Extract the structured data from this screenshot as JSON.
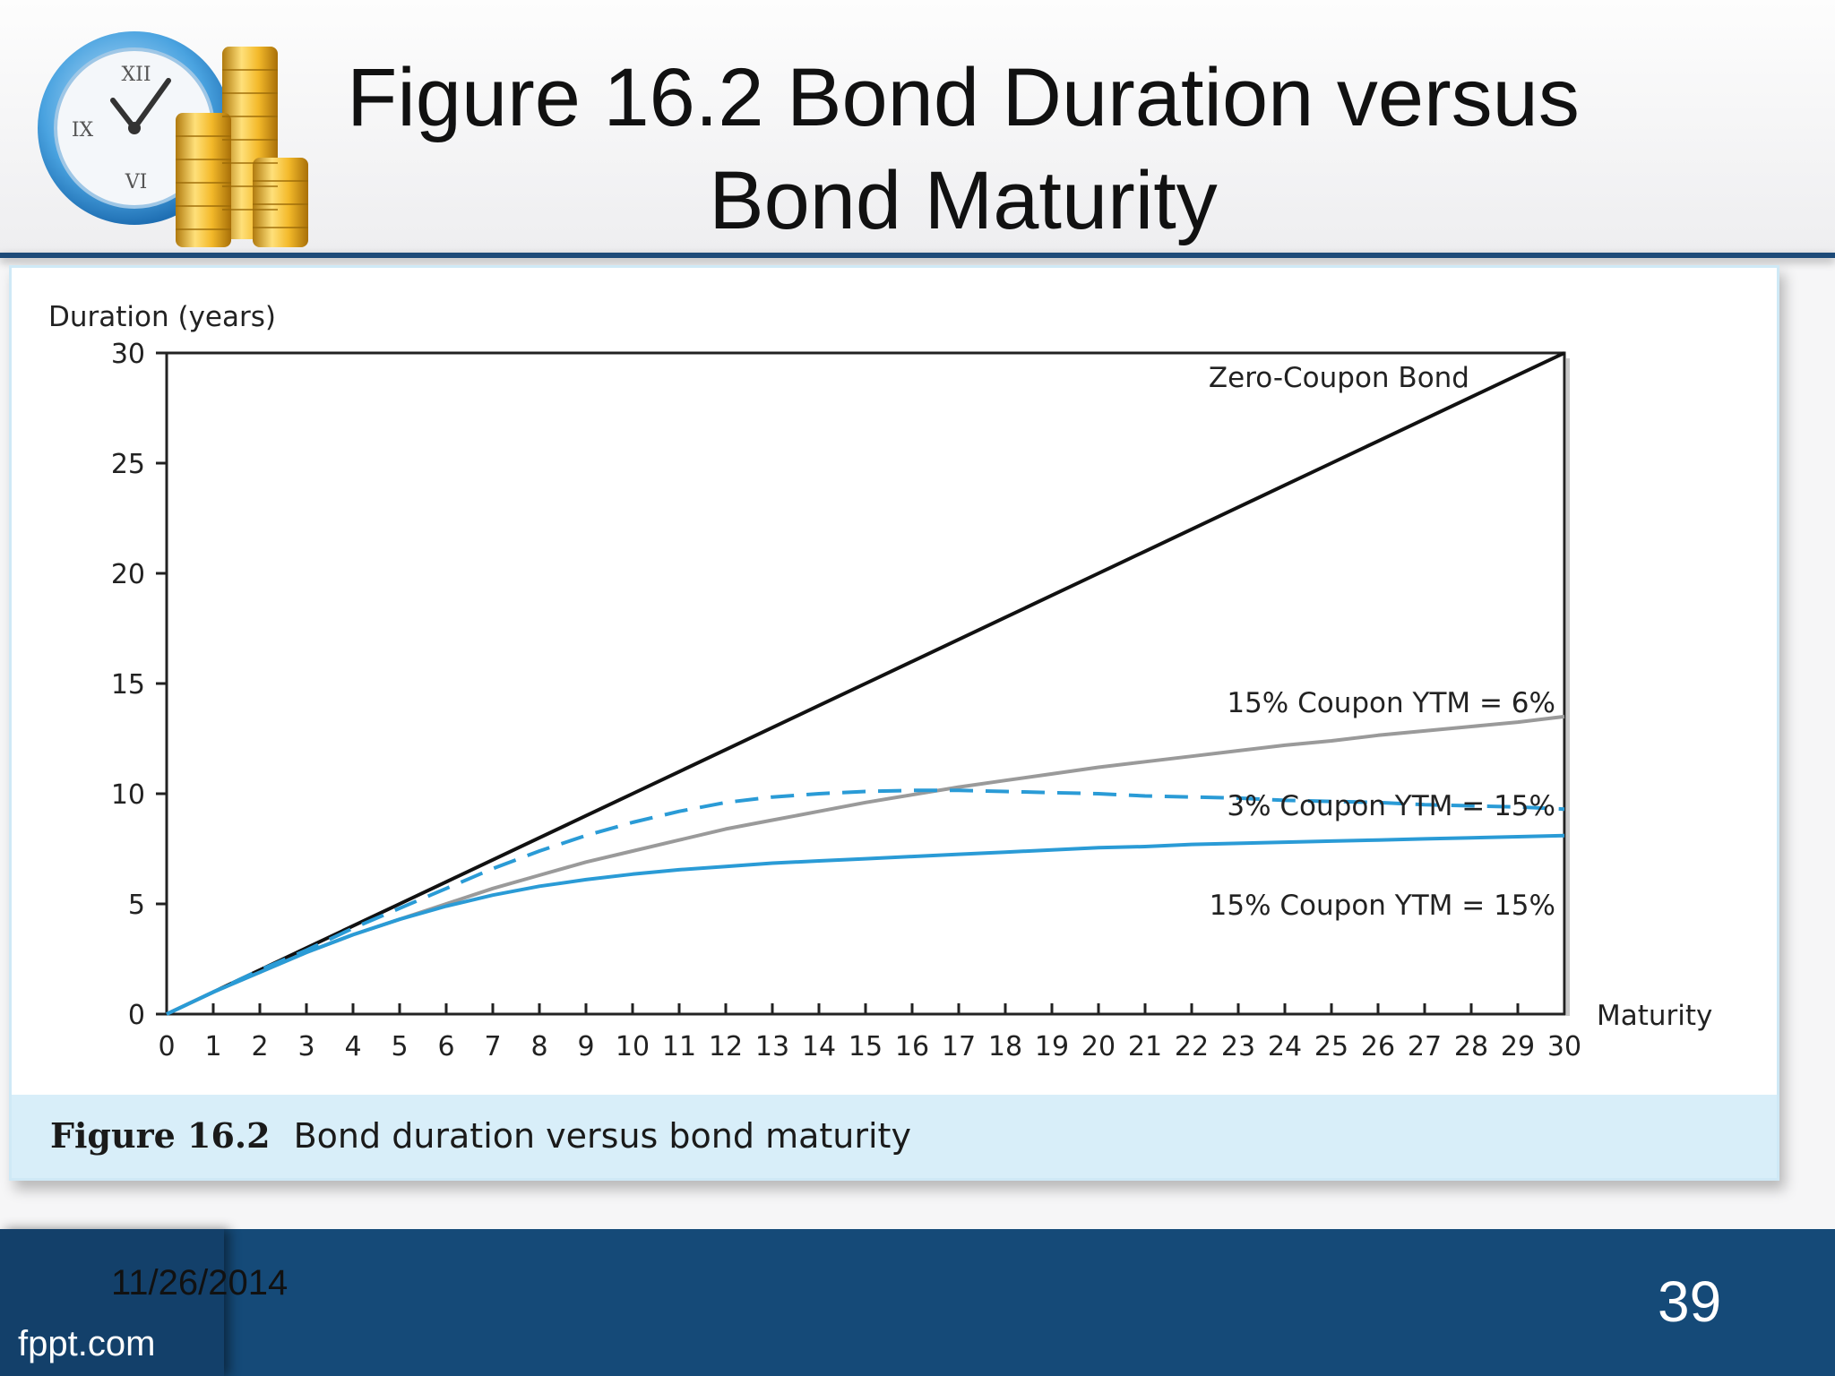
{
  "slide": {
    "title_line1": "Figure 16.2 Bond Duration versus",
    "title_line2": "Bond Maturity",
    "caption_number": "Figure 16.2",
    "caption_text": "Bond duration versus bond maturity",
    "date": "11/26/2014",
    "brand": "fppt.com",
    "page_number": "39"
  },
  "icons": {
    "logo": "clock-and-gold-coins-icon"
  },
  "colors": {
    "header_bar": "#1d4a78",
    "footer": "#154a78",
    "caption_band": "#d8eef9",
    "zero_coupon": "#111111",
    "coupon15_ytm6": "#9a9a9a",
    "coupon3_ytm15": "#2a9bd6",
    "coupon15_ytm15": "#2a9bd6"
  },
  "chart_data": {
    "type": "line",
    "title": "",
    "xlabel": "Maturity",
    "ylabel": "Duration (years)",
    "xlim": [
      0,
      30
    ],
    "ylim": [
      0,
      30
    ],
    "xticks": [
      0,
      1,
      2,
      3,
      4,
      5,
      6,
      7,
      8,
      9,
      10,
      11,
      12,
      13,
      14,
      15,
      16,
      17,
      18,
      19,
      20,
      21,
      22,
      23,
      24,
      25,
      26,
      27,
      28,
      29,
      30
    ],
    "yticks": [
      0,
      5,
      10,
      15,
      20,
      25,
      30
    ],
    "grid": false,
    "legend": "none",
    "x": [
      0,
      1,
      2,
      3,
      4,
      5,
      6,
      7,
      8,
      9,
      10,
      11,
      12,
      13,
      14,
      15,
      16,
      17,
      18,
      19,
      20,
      21,
      22,
      23,
      24,
      25,
      26,
      27,
      28,
      29,
      30
    ],
    "series": [
      {
        "name": "Zero-Coupon Bond",
        "style": "solid",
        "values": [
          0,
          1,
          2,
          3,
          4,
          5,
          6,
          7,
          8,
          9,
          10,
          11,
          12,
          13,
          14,
          15,
          16,
          17,
          18,
          19,
          20,
          21,
          22,
          23,
          24,
          25,
          26,
          27,
          28,
          29,
          30
        ]
      },
      {
        "name": "15% Coupon YTM = 6%",
        "style": "solid",
        "values": [
          0,
          1.0,
          1.9,
          2.8,
          3.6,
          4.3,
          5.0,
          5.7,
          6.3,
          6.9,
          7.4,
          7.9,
          8.4,
          8.8,
          9.2,
          9.6,
          9.95,
          10.3,
          10.6,
          10.9,
          11.2,
          11.45,
          11.7,
          11.95,
          12.2,
          12.4,
          12.65,
          12.85,
          13.05,
          13.25,
          13.5
        ]
      },
      {
        "name": "3% Coupon YTM = 15%",
        "style": "dashed",
        "values": [
          0,
          1.0,
          2.0,
          2.9,
          3.9,
          4.8,
          5.7,
          6.6,
          7.4,
          8.1,
          8.7,
          9.2,
          9.6,
          9.85,
          10.0,
          10.1,
          10.15,
          10.15,
          10.1,
          10.05,
          10.0,
          9.9,
          9.85,
          9.8,
          9.7,
          9.65,
          9.6,
          9.5,
          9.45,
          9.4,
          9.3
        ]
      },
      {
        "name": "15% Coupon YTM = 15%",
        "style": "solid",
        "values": [
          0,
          1.0,
          1.9,
          2.8,
          3.6,
          4.3,
          4.9,
          5.4,
          5.8,
          6.1,
          6.35,
          6.55,
          6.7,
          6.85,
          6.95,
          7.05,
          7.15,
          7.25,
          7.35,
          7.45,
          7.55,
          7.6,
          7.7,
          7.75,
          7.8,
          7.85,
          7.9,
          7.95,
          8.0,
          8.05,
          8.1
        ]
      }
    ]
  }
}
